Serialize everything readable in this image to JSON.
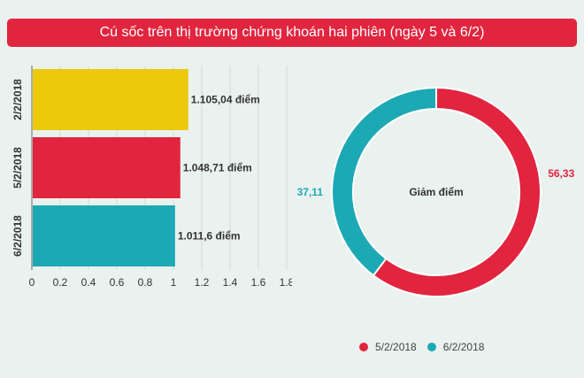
{
  "title": "Cú sốc trên thị trường chứng khoán hai phiên (ngày 5 và 6/2)",
  "colors": {
    "accent": "#e1253f",
    "yellow": "#ecc90a",
    "teal": "#1da9b4",
    "background": "#eaf2ef"
  },
  "chart_data": [
    {
      "type": "bar",
      "orientation": "horizontal",
      "categories": [
        "2/2/2018",
        "5/2/2018",
        "6/2/2018"
      ],
      "values": [
        1.10504,
        1.04871,
        1.0116
      ],
      "data_labels": [
        "1.105,04 điểm",
        "1.048,71 điểm",
        "1.011,6 điểm"
      ],
      "bar_colors": [
        "#ecc90a",
        "#e1253f",
        "#1da9b4"
      ],
      "xlim": [
        0,
        1.8
      ],
      "xticks": [
        "0",
        "0.2",
        "0.4",
        "0.6",
        "0.8",
        "1",
        "1.2",
        "1.4",
        "1.6",
        "1.8"
      ],
      "grid": true
    },
    {
      "type": "pie",
      "donut": true,
      "center_label": "Giảm điểm",
      "series": [
        {
          "name": "5/2/2018",
          "value": 56.33,
          "label": "56,33",
          "color": "#e1253f"
        },
        {
          "name": "6/2/2018",
          "value": 37.11,
          "label": "37,11",
          "color": "#1da9b4"
        }
      ],
      "legend_position": "bottom-right"
    }
  ]
}
